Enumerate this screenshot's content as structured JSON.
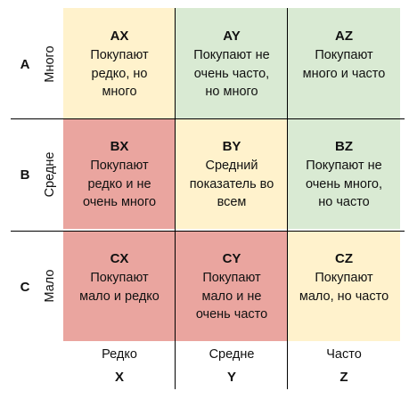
{
  "rows": [
    {
      "letter": "A",
      "label": "Много"
    },
    {
      "letter": "B",
      "label": "Средне"
    },
    {
      "letter": "C",
      "label": "Мало"
    }
  ],
  "columns": [
    {
      "label": "Редко",
      "letter": "X"
    },
    {
      "label": "Средне",
      "letter": "Y"
    },
    {
      "label": "Часто",
      "letter": "Z"
    }
  ],
  "cells": [
    {
      "code": "AX",
      "desc": "Покупают\nредко, но\nмного",
      "color": "#fff2cc"
    },
    {
      "code": "AY",
      "desc": "Покупают не\nочень часто,\nно много",
      "color": "#d9ead3"
    },
    {
      "code": "AZ",
      "desc": "Покупают\nмного и часто",
      "color": "#d9ead3"
    },
    {
      "code": "BX",
      "desc": "Покупают\nредко и не\nочень много",
      "color": "#eaa59f"
    },
    {
      "code": "BY",
      "desc": "Средний\nпоказатель во\nвсем",
      "color": "#fff2cc"
    },
    {
      "code": "BZ",
      "desc": "Покупают не\nочень много,\nно часто",
      "color": "#d9ead3"
    },
    {
      "code": "CX",
      "desc": "Покупают\nмало и редко",
      "color": "#eaa59f"
    },
    {
      "code": "CY",
      "desc": "Покупают\nмало и не\nочень часто",
      "color": "#eaa59f"
    },
    {
      "code": "CZ",
      "desc": "Покупают\nмало, но часто",
      "color": "#fff2cc"
    }
  ]
}
